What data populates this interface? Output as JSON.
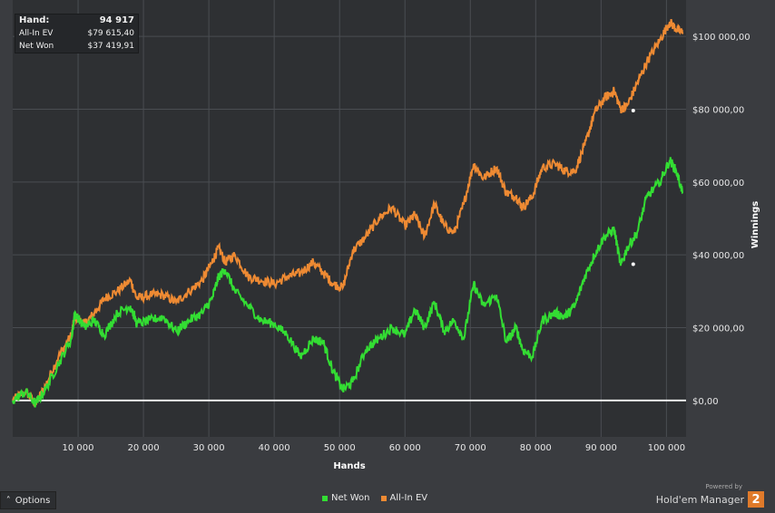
{
  "tooltip": {
    "rows": [
      {
        "label": "Hand:",
        "value": "94 917"
      },
      {
        "label": "All-In EV",
        "value": "$79 615,40"
      },
      {
        "label": "Net Won",
        "value": "$37 419,91"
      }
    ]
  },
  "options_label": "Options",
  "branding": {
    "powered": "Powered by",
    "brand": "Hold'em Manager",
    "logo": "2"
  },
  "colors": {
    "net_won": "#33dd33",
    "all_in_ev": "#ee8a33",
    "zero_line": "#ffffff"
  },
  "chart_data": {
    "type": "line",
    "xlabel": "Hands",
    "ylabel": "Winnings",
    "xlim": [
      0,
      103000
    ],
    "ylim": [
      -10000,
      110000
    ],
    "x_ticks": [
      10000,
      20000,
      30000,
      40000,
      50000,
      60000,
      70000,
      80000,
      90000,
      100000
    ],
    "x_tick_labels": [
      "10 000",
      "20 000",
      "30 000",
      "40 000",
      "50 000",
      "60 000",
      "70 000",
      "80 000",
      "90 000",
      "100 000"
    ],
    "y_ticks": [
      0,
      20000,
      40000,
      60000,
      80000,
      100000
    ],
    "y_tick_labels": [
      "$0,00",
      "$20 000,00",
      "$40 000,00",
      "$60 000,00",
      "$80 000,00",
      "$100 000,00"
    ],
    "legend_position": "bottom-center",
    "grid": true,
    "series": [
      {
        "name": "Net Won",
        "x": [
          0,
          2000,
          3500,
          5000,
          7000,
          9000,
          9500,
          11000,
          12500,
          14000,
          16000,
          18000,
          19000,
          21000,
          23000,
          25000,
          27000,
          29000,
          30500,
          31500,
          32500,
          34000,
          36000,
          38000,
          40000,
          42000,
          44000,
          46000,
          47500,
          49000,
          50500,
          52000,
          54000,
          56000,
          58000,
          60000,
          61500,
          63000,
          64500,
          66000,
          67500,
          69000,
          70500,
          72000,
          74000,
          75500,
          77000,
          78000,
          79500,
          81000,
          83000,
          84500,
          86000,
          87500,
          89000,
          90500,
          92000,
          93000,
          94000,
          95500,
          97000,
          99000,
          100500,
          101500,
          102500
        ],
        "y": [
          0,
          2500,
          -1000,
          3000,
          10000,
          17000,
          24000,
          20000,
          22000,
          18000,
          24000,
          26000,
          21000,
          22000,
          23000,
          19000,
          22000,
          24000,
          28000,
          34000,
          36000,
          30000,
          26000,
          22000,
          21000,
          18000,
          12000,
          17000,
          16000,
          8000,
          3000,
          5000,
          14000,
          17000,
          20000,
          18000,
          25000,
          20000,
          27000,
          19000,
          22000,
          17000,
          32000,
          26000,
          29000,
          16000,
          20000,
          14000,
          12000,
          22000,
          24000,
          23000,
          26000,
          34000,
          40000,
          45000,
          47000,
          37000,
          42000,
          46000,
          56000,
          60000,
          66000,
          63000,
          57000
        ]
      },
      {
        "name": "All-In EV",
        "x": [
          0,
          2000,
          3500,
          5000,
          7000,
          9000,
          9500,
          11000,
          12500,
          14000,
          16000,
          18000,
          19000,
          21000,
          23000,
          25000,
          27000,
          29000,
          30500,
          31500,
          32500,
          34000,
          36000,
          38000,
          40000,
          42000,
          44000,
          46000,
          47500,
          49000,
          50500,
          52000,
          54000,
          56000,
          58000,
          60000,
          61500,
          63000,
          64500,
          66000,
          67500,
          69000,
          70500,
          72000,
          74000,
          75500,
          77000,
          78000,
          79500,
          81000,
          83000,
          84500,
          86000,
          87500,
          89000,
          90500,
          92000,
          93000,
          94000,
          95500,
          97000,
          99000,
          100500,
          101500,
          102500
        ],
        "y": [
          0,
          2500,
          -1000,
          4000,
          12000,
          18000,
          23000,
          21000,
          24000,
          28000,
          30000,
          33000,
          28000,
          29000,
          29000,
          27000,
          30000,
          33000,
          38000,
          42000,
          38000,
          40000,
          34000,
          33000,
          32000,
          34000,
          35000,
          38000,
          35000,
          32000,
          31000,
          41000,
          45000,
          50000,
          53000,
          48000,
          51000,
          45000,
          54000,
          48000,
          46000,
          54000,
          65000,
          61000,
          64000,
          57000,
          56000,
          53000,
          56000,
          64000,
          65000,
          63000,
          63000,
          70000,
          79000,
          83000,
          85000,
          80000,
          81000,
          87000,
          93000,
          99000,
          104000,
          102000,
          101000
        ]
      }
    ]
  }
}
